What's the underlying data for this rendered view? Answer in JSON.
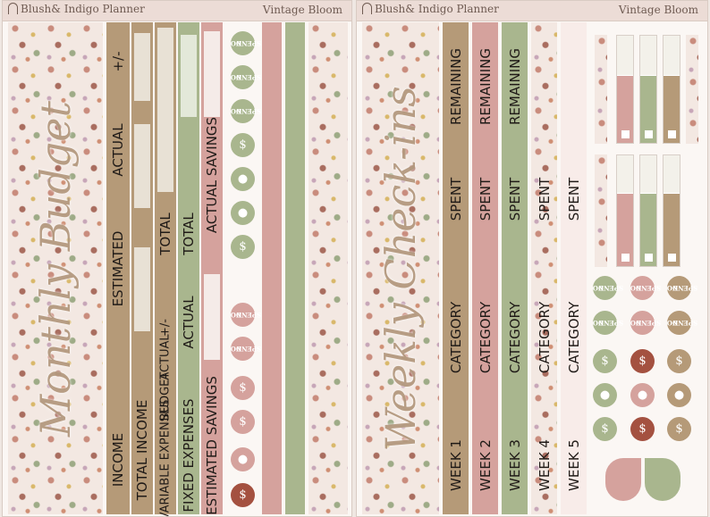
{
  "brand": "Blush& Indigo Planner",
  "sheet_name": "Vintage Bloom",
  "colors": {
    "tan": "#b59a78",
    "rose": "#d5a29d",
    "sage": "#a9b68e",
    "cream": "#e8e1d5",
    "blush": "#f1e1dc",
    "rust": "#a45140"
  },
  "monthly": {
    "script_title": "Monthly Budget",
    "income_strip": {
      "income": "INCOME",
      "estimated": "ESTIMATED",
      "actual": "ACTUAL",
      "diff": "+/-"
    },
    "total_income": "TOTAL INCOME",
    "variable": {
      "label": "VARIABLE EXPENSES",
      "budget": "BUDGET",
      "actual": "ACTUAL",
      "diff": "+/-",
      "total": "TOTAL"
    },
    "fixed": {
      "label": "FIXED EXPENSES",
      "actual": "ACTUAL",
      "total": "TOTAL"
    },
    "savings": {
      "estimated": "ESTIMATED SAVINGS",
      "actual": "ACTUAL SAVINGS"
    }
  },
  "weekly": {
    "script_title": "Weekly Check-ins",
    "rows": [
      {
        "week": "WEEK 1",
        "category": "CATEGORY",
        "spent": "SPENT",
        "remaining": "REMAINING"
      },
      {
        "week": "WEEK 2",
        "category": "CATEGORY",
        "spent": "SPENT",
        "remaining": "REMAINING"
      },
      {
        "week": "WEEK 3",
        "category": "CATEGORY",
        "spent": "SPENT",
        "remaining": "REMAINING"
      },
      {
        "week": "WEEK 4",
        "category": "CATEGORY",
        "spent": "SPENT"
      },
      {
        "week": "WEEK 5",
        "category": "CATEGORY",
        "spent": "SPENT"
      }
    ]
  },
  "no_spend": {
    "line1": "NO",
    "line2": "SPEND"
  },
  "icons": [
    "no-spend-icon",
    "money-bill-icon",
    "piggy-bank-icon",
    "money-bag-icon",
    "heart-icon"
  ]
}
